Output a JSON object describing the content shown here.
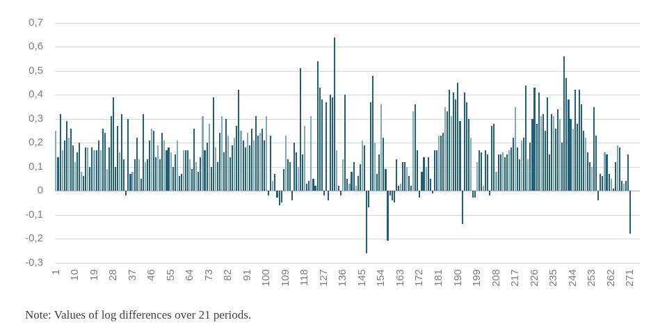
{
  "note": "Note: Values of log differences over 21 periods.",
  "colors": {
    "bar": "#1E5F7E",
    "bar_light": "#7FA9BE",
    "grid": "#D9D9D9",
    "zero_line": "#ADADAD",
    "axis_text": "#7B7B7B",
    "note_text": "#3F3F3F",
    "background": "#FFFFFF"
  },
  "chart_data": {
    "type": "bar",
    "title": "",
    "xlabel": "",
    "ylabel": "",
    "ylim": [
      -0.3,
      0.7
    ],
    "y_tick_step": 0.1,
    "grid": true,
    "legend": "none",
    "decimal_separator": ",",
    "y_tick_labels": [
      "0,7",
      "0,6",
      "0,5",
      "0,4",
      "0,3",
      "0,2",
      "0,1",
      "0",
      "-0,1",
      "-0,2",
      "-0,3"
    ],
    "x_tick_labels": [
      "1",
      "10",
      "19",
      "28",
      "37",
      "46",
      "55",
      "64",
      "73",
      "82",
      "91",
      "100",
      "109",
      "118",
      "127",
      "136",
      "145",
      "154",
      "163",
      "172",
      "181",
      "190",
      "199",
      "208",
      "217",
      "226",
      "235",
      "244",
      "253",
      "262",
      "271"
    ],
    "x_tick_step": 9,
    "values": [
      0.25,
      0.14,
      0.32,
      0.17,
      0.21,
      0.29,
      0.22,
      0.26,
      0.19,
      0.12,
      0.16,
      0.2,
      0.08,
      0.06,
      0.18,
      0.18,
      0.1,
      0.18,
      0.17,
      0.17,
      0.21,
      0.17,
      0.26,
      0.24,
      0.09,
      0.18,
      0.31,
      0.39,
      0.1,
      0.27,
      0.16,
      0.32,
      0.13,
      -0.02,
      0.3,
      0.07,
      0.08,
      0.13,
      0.22,
      0.13,
      0.05,
      0.32,
      0.12,
      0.13,
      0.21,
      0.26,
      0.25,
      0.14,
      0.19,
      0.13,
      0.24,
      0.21,
      0.17,
      0.18,
      0.16,
      0.1,
      0.15,
      0.21,
      0.06,
      0.07,
      0.17,
      0.17,
      0.17,
      0.13,
      0.09,
      0.26,
      0.12,
      0.08,
      0.14,
      0.31,
      0.17,
      0.2,
      0.28,
      0.1,
      0.39,
      0.18,
      0.12,
      0.24,
      0.31,
      0.16,
      0.3,
      0.23,
      0.14,
      0.19,
      0.22,
      0.27,
      0.42,
      0.25,
      0.21,
      0.18,
      0.24,
      0.19,
      0.26,
      0.21,
      0.31,
      0.23,
      0.24,
      0.26,
      0.21,
      0.31,
      -0.02,
      0.23,
      0.04,
      0.07,
      -0.03,
      -0.06,
      -0.05,
      0.09,
      0.23,
      0.13,
      0.12,
      -0.04,
      0.2,
      0.16,
      0.1,
      0.51,
      0.15,
      0.27,
      0.03,
      0.04,
      0.31,
      0.05,
      0.02,
      0.54,
      0.43,
      0.38,
      -0.02,
      0.37,
      -0.04,
      0.4,
      0.39,
      0.64,
      0.17,
      0.02,
      -0.02,
      0.13,
      0.4,
      0.05,
      0.03,
      0.08,
      0.12,
      0.02,
      0.06,
      0.11,
      0.21,
      0.19,
      -0.26,
      -0.07,
      0.37,
      0.48,
      0.2,
      0.07,
      0.15,
      0.36,
      0.22,
      0.09,
      -0.21,
      -0.02,
      -0.04,
      -0.05,
      0.13,
      0.02,
      0.03,
      0.12,
      0.12,
      0.1,
      0.06,
      0.02,
      0.33,
      0.36,
      0.17,
      -0.03,
      0.08,
      0.14,
      0.1,
      0.14,
      0.05,
      -0.01,
      0.17,
      0.17,
      0.23,
      0.23,
      0.24,
      0.35,
      0.33,
      0.42,
      0.31,
      0.41,
      0.38,
      0.45,
      0.29,
      -0.14,
      0.41,
      0.37,
      0.3,
      0.22,
      -0.03,
      -0.03,
      0.12,
      0.17,
      0.16,
      0.02,
      0.17,
      0.15,
      -0.02,
      0.27,
      0.28,
      0.08,
      0.15,
      0.15,
      0.16,
      0.14,
      0.15,
      0.17,
      0.18,
      0.22,
      0.35,
      0.18,
      0.13,
      0.21,
      0.22,
      0.44,
      0.13,
      0.2,
      0.3,
      0.43,
      0.28,
      0.41,
      0.31,
      0.32,
      0.25,
      0.39,
      0.15,
      0.32,
      0.31,
      0.26,
      0.34,
      0.3,
      0.2,
      0.56,
      0.47,
      0.38,
      0.3,
      0.26,
      0.42,
      0.28,
      0.42,
      0.36,
      0.25,
      0.22,
      0.16,
      0.12,
      0.1,
      0.35,
      0.23,
      -0.04,
      0.07,
      0.06,
      0.16,
      0.15,
      0.07,
      0.05,
      0.01,
      0.12,
      0.19,
      0.18,
      0.04,
      0.03,
      0.04,
      0.15,
      -0.18,
      0,
      0,
      0,
      0
    ]
  }
}
